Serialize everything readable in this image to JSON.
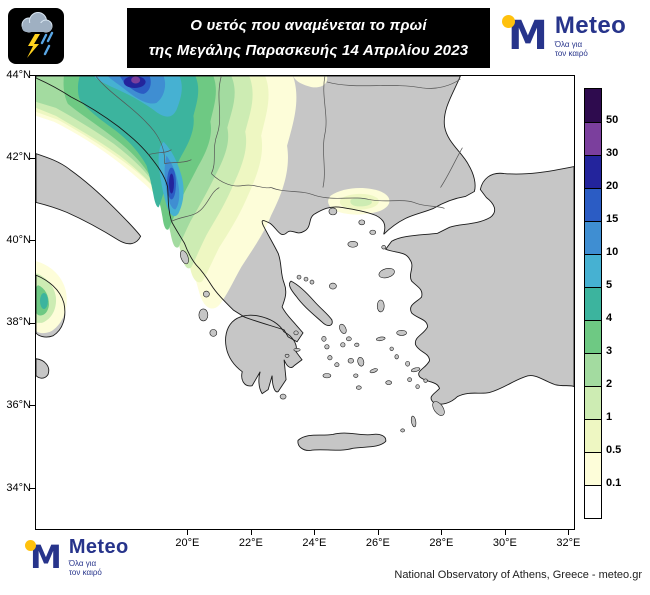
{
  "banner": {
    "line1": "Ο υετός που αναμένεται το πρωί",
    "line2": "της Μεγάλης Παρασκευής 14 Απριλίου 2023"
  },
  "logo": {
    "monogram": "M",
    "name": "Meteo",
    "tagline_line1": "Όλα για",
    "tagline_line2": "τον καιρό"
  },
  "axes": {
    "lat_labels": [
      "44°N",
      "42°N",
      "40°N",
      "38°N",
      "36°N",
      "34°N"
    ],
    "lon_labels": [
      "20°E",
      "22°E",
      "24°E",
      "26°E",
      "28°E",
      "30°E",
      "32°E"
    ]
  },
  "colorbar": {
    "tick_labels": [
      "50",
      "30",
      "20",
      "15",
      "10",
      "5",
      "4",
      "3",
      "2",
      "1",
      "0.5",
      "0.1"
    ],
    "segments": [
      "#2e0b4e",
      "#7b3f9d",
      "#23249c",
      "#2b5cc4",
      "#3f8ed2",
      "#46b1d2",
      "#3cb49e",
      "#6ec983",
      "#a3dba0",
      "#cdecb3",
      "#eef7c2",
      "#fdfdd9",
      "#ffffff"
    ]
  },
  "footer": {
    "credit": "National Observatory of Athens, Greece - meteo.gr"
  },
  "colors": {
    "land": "#c6c6c6",
    "sea": "#ffffff",
    "coastline": "#1a1a1a",
    "banner_bg": "#000000",
    "brand_blue": "#27348b",
    "brand_yellow": "#ffc10d"
  }
}
